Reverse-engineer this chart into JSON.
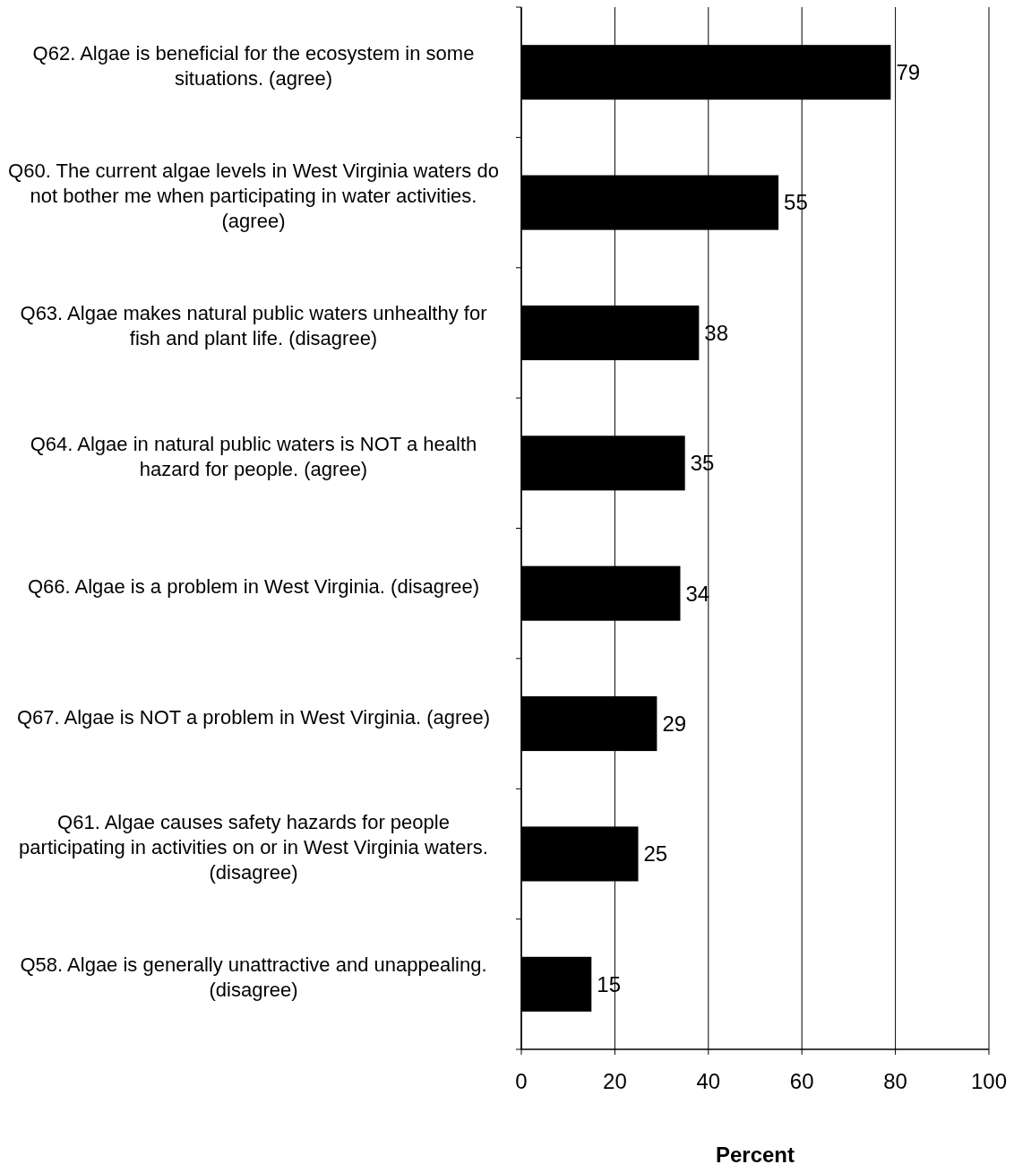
{
  "chart_data": {
    "type": "bar",
    "orientation": "horizontal",
    "xlabel": "Percent",
    "categories": [
      "Q62. Algae is beneficial for the ecosystem in some situations. (agree)",
      "Q60. The current algae levels in West Virginia waters do not bother me when participating in water activities. (agree)",
      "Q63. Algae makes natural public waters unhealthy for fish and plant life. (disagree)",
      "Q64. Algae in natural public waters is NOT a health hazard for people. (agree)",
      "Q66. Algae is a problem in West Virginia. (disagree)",
      "Q67. Algae is NOT a problem in West Virginia. (agree)",
      "Q61. Algae causes safety hazards for people participating in activities on or in West Virginia waters. (disagree)",
      "Q58. Algae is generally unattractive and unappealing. (disagree)"
    ],
    "values": [
      79,
      55,
      38,
      35,
      34,
      29,
      25,
      15
    ],
    "color": "#000000",
    "data_labels": true,
    "xlim": [
      0,
      100
    ],
    "xticks": [
      0,
      20,
      40,
      60,
      80,
      100
    ],
    "grid": "x"
  }
}
